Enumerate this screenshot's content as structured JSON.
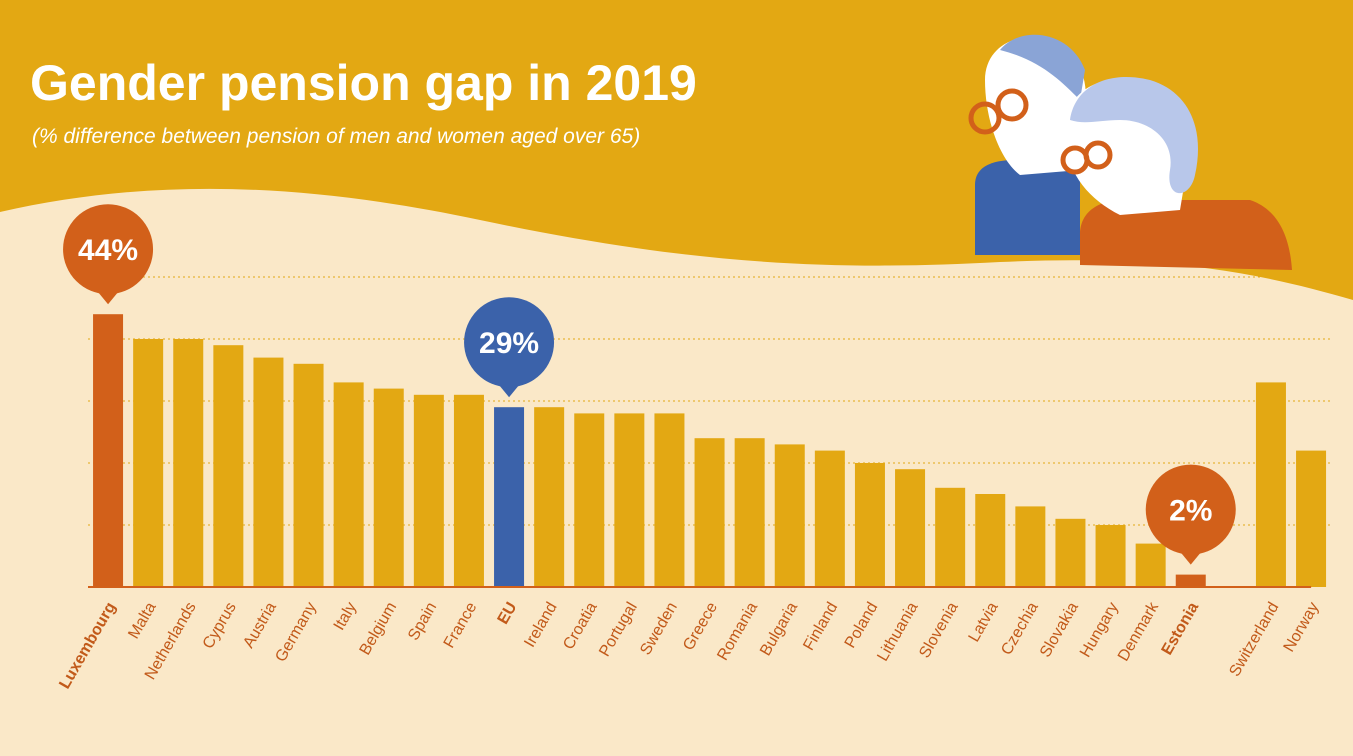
{
  "chart_data": {
    "type": "bar",
    "title": "Gender pension gap in 2019",
    "subtitle": "(% difference between pension of men and women aged over 65)",
    "categories": [
      "Luxembourg",
      "Malta",
      "Netherlands",
      "Cyprus",
      "Austria",
      "Germany",
      "Italy",
      "Belgium",
      "Spain",
      "France",
      "EU",
      "Ireland",
      "Croatia",
      "Portugal",
      "Sweden",
      "Greece",
      "Romania",
      "Bulgaria",
      "Finland",
      "Poland",
      "Lithuania",
      "Slovenia",
      "Latvia",
      "Czechia",
      "Slovakia",
      "Hungary",
      "Denmark",
      "Estonia",
      null,
      "Switzerland",
      "Norway"
    ],
    "values": [
      44,
      40,
      40,
      39,
      37,
      36,
      33,
      32,
      31,
      31,
      29,
      29,
      28,
      28,
      28,
      24,
      24,
      23,
      22,
      20,
      19,
      16,
      15,
      13,
      11,
      10,
      7,
      2,
      null,
      33,
      22
    ],
    "value_labels": [
      "44%",
      null,
      null,
      null,
      null,
      null,
      null,
      null,
      null,
      null,
      "29%",
      null,
      null,
      null,
      null,
      null,
      null,
      null,
      null,
      null,
      null,
      null,
      null,
      null,
      null,
      null,
      null,
      "2%",
      null,
      null,
      null
    ],
    "color": "#e3a813",
    "colors": [
      "#d2601a",
      "#e3a813",
      "#e3a813",
      "#e3a813",
      "#e3a813",
      "#e3a813",
      "#e3a813",
      "#e3a813",
      "#e3a813",
      "#e3a813",
      "#3b62aa",
      "#e3a813",
      "#e3a813",
      "#e3a813",
      "#e3a813",
      "#e3a813",
      "#e3a813",
      "#e3a813",
      "#e3a813",
      "#e3a813",
      "#e3a813",
      "#e3a813",
      "#e3a813",
      "#e3a813",
      "#e3a813",
      "#e3a813",
      "#e3a813",
      "#d2601a",
      null,
      "#e3a813",
      "#e3a813"
    ],
    "ylim": [
      0,
      50
    ],
    "yticks": [
      10,
      20,
      30,
      40,
      50
    ],
    "grid": true,
    "show_tick_labels": false
  }
}
